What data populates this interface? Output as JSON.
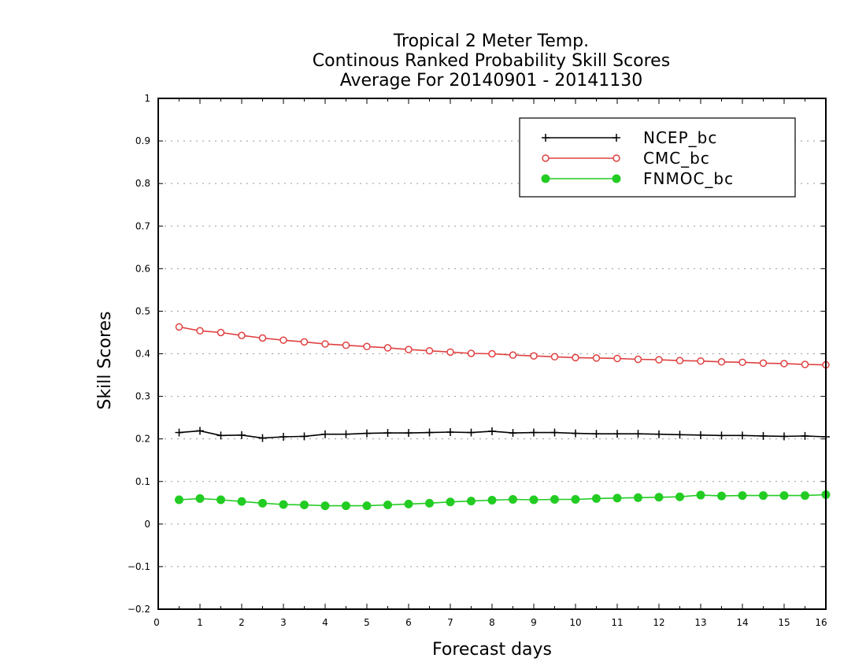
{
  "chart_data": {
    "type": "line",
    "title": [
      "Tropical 2 Meter Temp.",
      "Continous Ranked Probability Skill Scores",
      "Average For 20140901 - 20141130"
    ],
    "xlabel": "Forecast days",
    "ylabel": "Skill Scores",
    "xlim": [
      0,
      16
    ],
    "ylim": [
      -0.2,
      1
    ],
    "xticks": [
      0,
      1,
      2,
      3,
      4,
      5,
      6,
      7,
      8,
      9,
      10,
      11,
      12,
      13,
      14,
      15,
      16
    ],
    "xtick_labels": [
      "0",
      "1",
      "2",
      "3",
      "4",
      "5",
      "6",
      "7",
      "8",
      "9",
      "10",
      "11",
      "12",
      "13",
      "14",
      "15",
      "16"
    ],
    "yticks": [
      -0.2,
      -0.1,
      0,
      0.1,
      0.2,
      0.3,
      0.4,
      0.5,
      0.6,
      0.7,
      0.8,
      0.9,
      1
    ],
    "ytick_labels": [
      "−0.2",
      "−0.1",
      "0",
      "0.1",
      "0.2",
      "0.3",
      "0.4",
      "0.5",
      "0.6",
      "0.7",
      "0.8",
      "0.9",
      "1"
    ],
    "grid": "horizontal-dotted",
    "legend_position": "top-right",
    "x": [
      0.5,
      1,
      1.5,
      2,
      2.5,
      3,
      3.5,
      4,
      4.5,
      5,
      5.5,
      6,
      6.5,
      7,
      7.5,
      8,
      8.5,
      9,
      9.5,
      10,
      10.5,
      11,
      11.5,
      12,
      12.5,
      13,
      13.5,
      14,
      14.5,
      15,
      15.5,
      16
    ],
    "series": [
      {
        "name": "NCEP_bc",
        "color": "#000000",
        "marker": "plus",
        "values": [
          0.215,
          0.219,
          0.208,
          0.209,
          0.202,
          0.205,
          0.206,
          0.211,
          0.211,
          0.213,
          0.214,
          0.214,
          0.215,
          0.216,
          0.215,
          0.218,
          0.214,
          0.215,
          0.215,
          0.213,
          0.212,
          0.212,
          0.212,
          0.211,
          0.21,
          0.209,
          0.208,
          0.208,
          0.207,
          0.206,
          0.207,
          0.205
        ]
      },
      {
        "name": "CMC_bc",
        "color": "#e04040",
        "marker": "open-circle",
        "values": [
          0.463,
          0.454,
          0.45,
          0.443,
          0.437,
          0.432,
          0.428,
          0.423,
          0.42,
          0.417,
          0.414,
          0.41,
          0.407,
          0.404,
          0.401,
          0.4,
          0.397,
          0.395,
          0.393,
          0.391,
          0.39,
          0.389,
          0.387,
          0.386,
          0.384,
          0.383,
          0.381,
          0.38,
          0.378,
          0.377,
          0.375,
          0.374
        ]
      },
      {
        "name": "FNMOC_bc",
        "color": "#22cc22",
        "marker": "filled-circle",
        "values": [
          0.057,
          0.06,
          0.057,
          0.053,
          0.049,
          0.046,
          0.045,
          0.043,
          0.043,
          0.043,
          0.045,
          0.047,
          0.049,
          0.052,
          0.054,
          0.056,
          0.058,
          0.057,
          0.058,
          0.058,
          0.06,
          0.061,
          0.062,
          0.063,
          0.064,
          0.068,
          0.066,
          0.067,
          0.067,
          0.067,
          0.067,
          0.069
        ]
      }
    ]
  }
}
